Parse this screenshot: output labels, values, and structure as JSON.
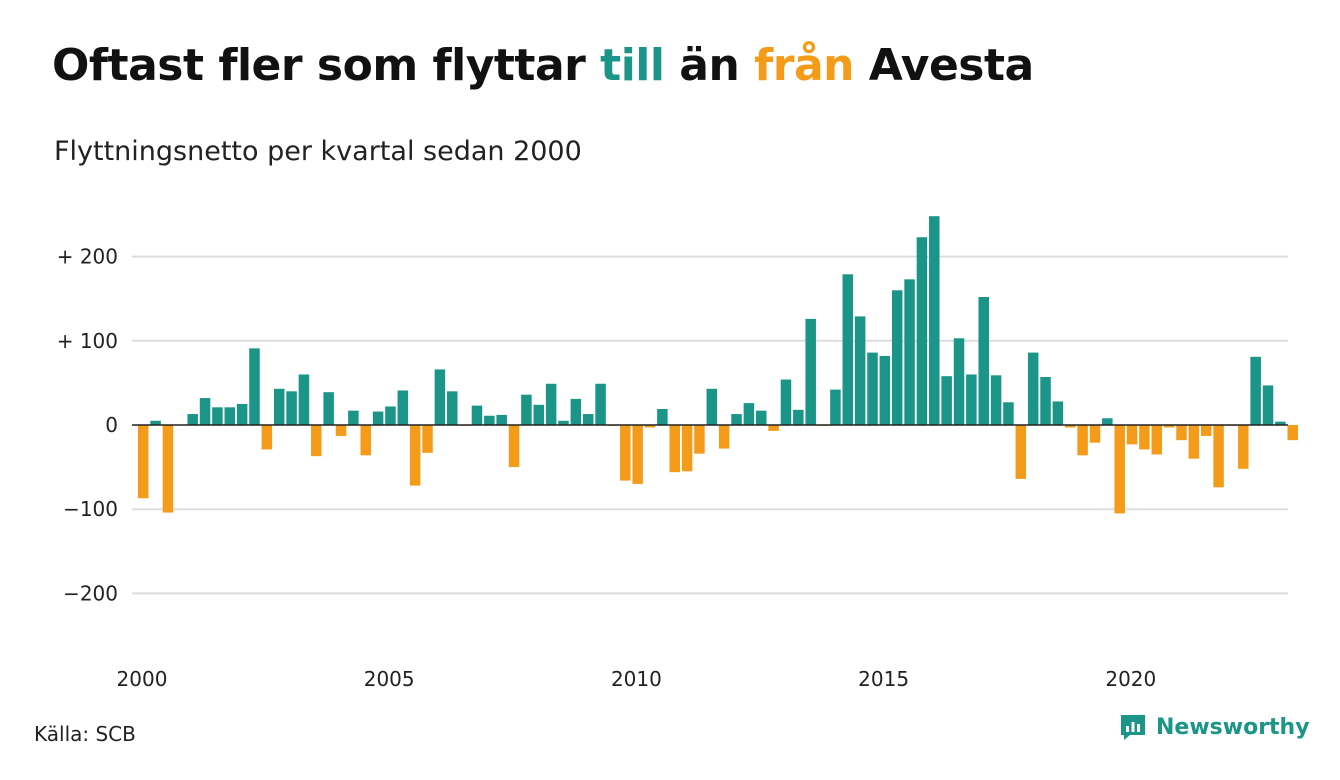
{
  "title": {
    "part1": "Oftast fler som flyttar ",
    "pos_word": "till",
    "part2": " än ",
    "neg_word": "från",
    "part3": " Avesta"
  },
  "subtitle": "Flyttningsnetto per kvartal sedan 2000",
  "source": "Källa: SCB",
  "brand": "Newsworthy",
  "colors": {
    "positive": "#1a9587",
    "negative": "#f49c19",
    "grid": "#dddddd",
    "zero_line": "#222222"
  },
  "chart_data": {
    "type": "bar",
    "title": "Oftast fler som flyttar till än från Avesta",
    "subtitle": "Flyttningsnetto per kvartal sedan 2000",
    "xlabel": "",
    "ylabel": "",
    "ylim": [
      -260,
      260
    ],
    "yticks": [
      200,
      100,
      0,
      -100,
      -200
    ],
    "ytick_labels": [
      "+ 200",
      "+ 100",
      "0",
      "−100",
      "−200"
    ],
    "xticks": [
      2000,
      2005,
      2010,
      2015,
      2020
    ],
    "xtick_labels": [
      "2000",
      "2005",
      "2010",
      "2015",
      "2020"
    ],
    "grid": true,
    "legend": "none",
    "first_period": "2000 Q1",
    "periodicity": "quarterly",
    "values": [
      -87,
      5,
      -104,
      0,
      13,
      32,
      21,
      21,
      25,
      91,
      -29,
      43,
      40,
      60,
      -37,
      39,
      -13,
      17,
      -36,
      16,
      22,
      41,
      -72,
      -33,
      66,
      40,
      -1,
      23,
      11,
      12,
      -50,
      36,
      24,
      49,
      5,
      31,
      13,
      49,
      -1,
      -66,
      -70,
      -3,
      19,
      -56,
      -55,
      -34,
      43,
      -28,
      13,
      26,
      17,
      -7,
      54,
      18,
      126,
      -1,
      42,
      179,
      129,
      86,
      82,
      160,
      173,
      223,
      248,
      58,
      103,
      60,
      152,
      59,
      27,
      -64,
      86,
      57,
      28,
      -3,
      -36,
      -21,
      8,
      -105,
      -23,
      -29,
      -35,
      -3,
      -18,
      -40,
      -13,
      -74,
      -1,
      -52,
      81,
      47,
      4,
      -18
    ]
  }
}
